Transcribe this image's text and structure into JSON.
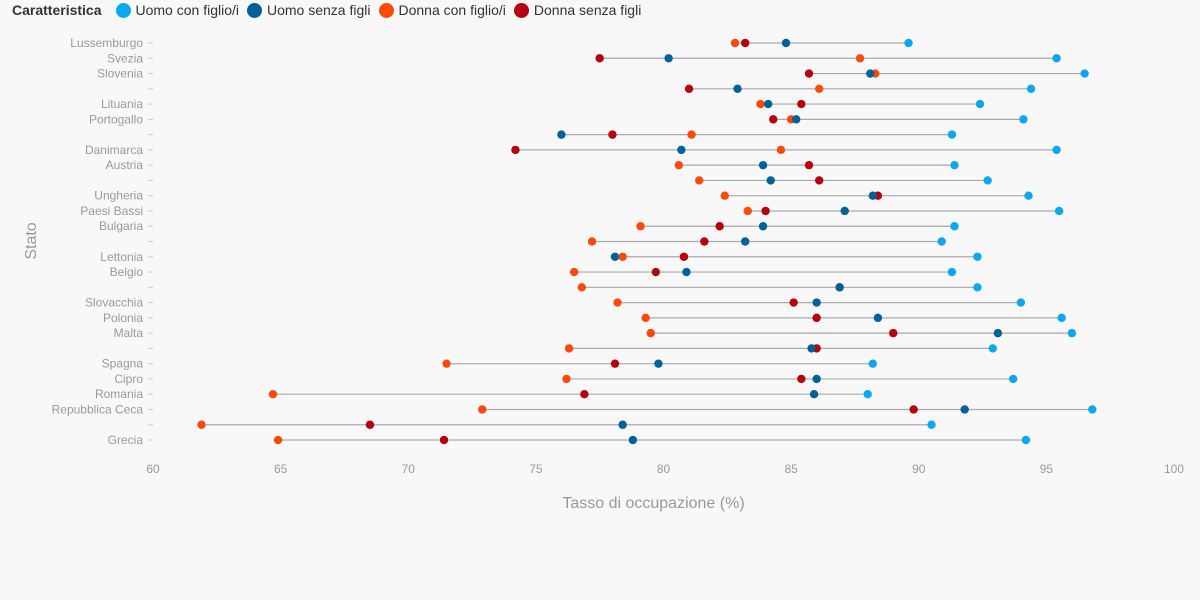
{
  "chart_data": {
    "type": "dumbbell",
    "legend_title": "Caratteristica",
    "series": [
      {
        "name": "Uomo con figlio/i",
        "color": "#0ca7ee"
      },
      {
        "name": "Uomo senza figli",
        "color": "#00609a"
      },
      {
        "name": "Donna con figlio/i",
        "color": "#fc4a0a"
      },
      {
        "name": "Donna senza figli",
        "color": "#b5000d"
      }
    ],
    "xlabel": "Tasso di occupazione (%)",
    "ylabel": "Stato",
    "xlim": [
      60,
      100
    ],
    "xticks": [
      60,
      65,
      70,
      75,
      80,
      85,
      90,
      95,
      100
    ],
    "rows": [
      {
        "label": "Lussemburgo",
        "values": [
          89.6,
          84.8,
          82.8,
          83.2
        ]
      },
      {
        "label": "Svezia",
        "values": [
          95.4,
          80.2,
          87.7,
          77.5
        ]
      },
      {
        "label": "Slovenia",
        "values": [
          96.5,
          88.1,
          88.3,
          85.7
        ]
      },
      {
        "label": "",
        "values": [
          94.4,
          82.9,
          86.1,
          81.0
        ]
      },
      {
        "label": "Lituania",
        "values": [
          92.4,
          84.1,
          83.8,
          85.4
        ]
      },
      {
        "label": "Portogallo",
        "values": [
          94.1,
          85.2,
          85.0,
          84.3
        ]
      },
      {
        "label": "",
        "values": [
          91.3,
          76.0,
          81.1,
          78.0
        ]
      },
      {
        "label": "Danimarca",
        "values": [
          95.4,
          80.7,
          84.6,
          74.2
        ]
      },
      {
        "label": "Austria",
        "values": [
          91.4,
          83.9,
          80.6,
          85.7
        ]
      },
      {
        "label": "",
        "values": [
          92.7,
          84.2,
          81.4,
          86.1
        ]
      },
      {
        "label": "Ungheria",
        "values": [
          94.3,
          88.2,
          82.4,
          88.4
        ]
      },
      {
        "label": "Paesi Bassi",
        "values": [
          95.5,
          87.1,
          83.3,
          84.0
        ]
      },
      {
        "label": "Bulgaria",
        "values": [
          91.4,
          83.9,
          79.1,
          82.2
        ]
      },
      {
        "label": "",
        "values": [
          90.9,
          83.2,
          77.2,
          81.6
        ]
      },
      {
        "label": "Lettonia",
        "values": [
          92.3,
          78.1,
          78.4,
          80.8
        ]
      },
      {
        "label": "Belgio",
        "values": [
          91.3,
          80.9,
          76.5,
          79.7
        ]
      },
      {
        "label": "",
        "values": [
          92.3,
          86.9,
          76.8,
          86.9
        ]
      },
      {
        "label": "Slovacchia",
        "values": [
          94.0,
          86.0,
          78.2,
          85.1
        ]
      },
      {
        "label": "Polonia",
        "values": [
          95.6,
          88.4,
          79.3,
          86.0
        ]
      },
      {
        "label": "Malta",
        "values": [
          96.0,
          93.1,
          79.5,
          89.0
        ]
      },
      {
        "label": "",
        "values": [
          92.9,
          85.8,
          76.3,
          86.0
        ]
      },
      {
        "label": "Spagna",
        "values": [
          88.2,
          79.8,
          71.5,
          78.1
        ]
      },
      {
        "label": "Cipro",
        "values": [
          93.7,
          86.0,
          76.2,
          85.4
        ]
      },
      {
        "label": "Romania",
        "values": [
          88.0,
          85.9,
          64.7,
          76.9
        ]
      },
      {
        "label": "Repubblica Ceca",
        "values": [
          96.8,
          91.8,
          72.9,
          89.8
        ]
      },
      {
        "label": "",
        "values": [
          90.5,
          78.4,
          61.9,
          68.5
        ]
      },
      {
        "label": "Grecia",
        "values": [
          94.2,
          78.8,
          64.9,
          71.4
        ]
      }
    ]
  }
}
